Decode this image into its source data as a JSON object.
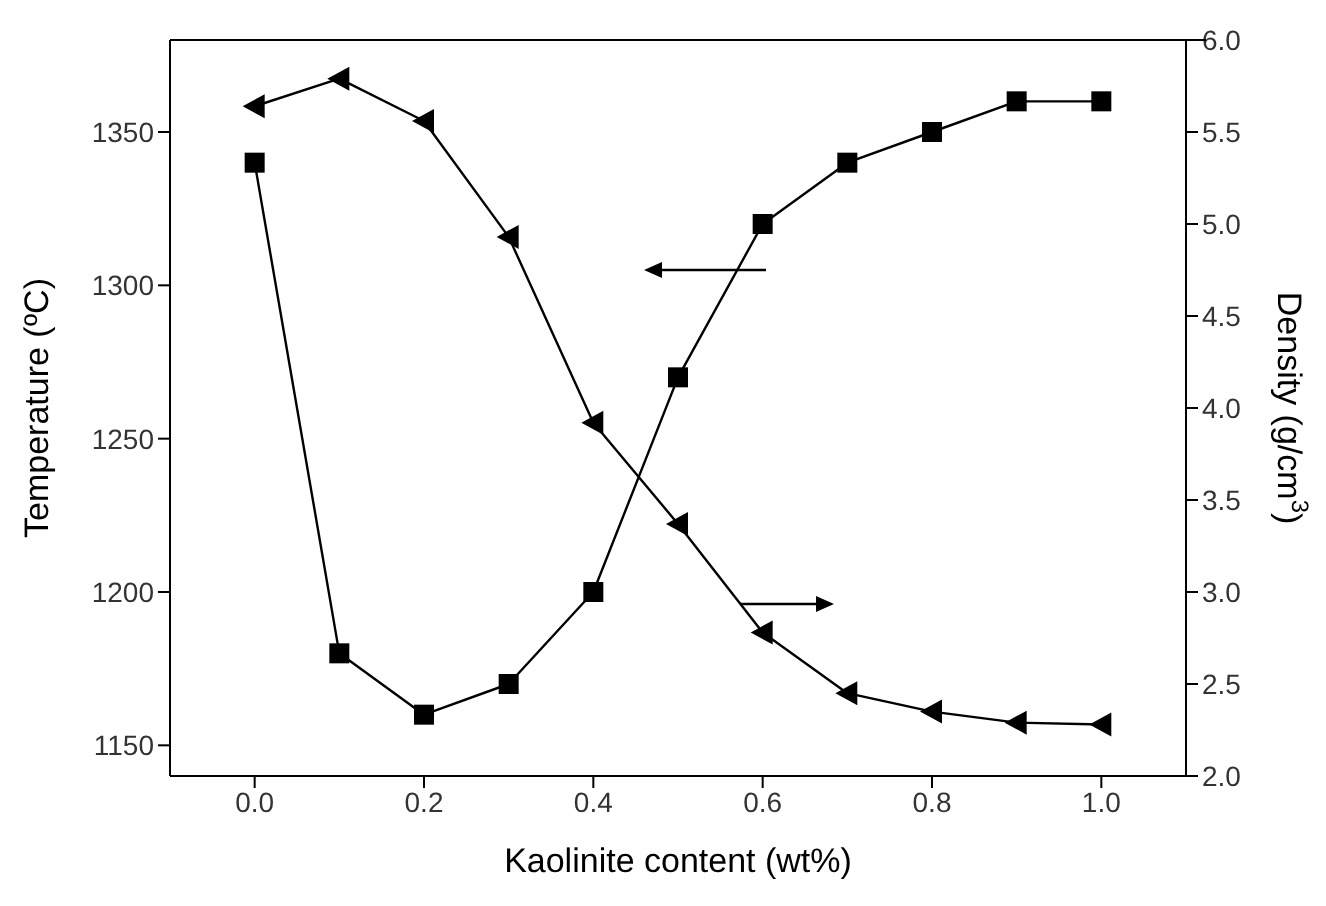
{
  "chart_data": {
    "type": "line",
    "xlabel": "Kaolinite content (wt%)",
    "ylabel": "Temperature (ºC)",
    "y2label": "Density (g/cm$^{3}$)",
    "x": [
      0,
      0.1,
      0.2,
      0.3,
      0.4,
      0.5,
      0.6,
      0.7,
      0.8,
      0.9,
      1.0
    ],
    "xlim": [
      -0.1,
      1.1
    ],
    "xticks": [
      {
        "value": 0,
        "label": "0.0"
      },
      0.2,
      0.4,
      0.6,
      0.8,
      {
        "value": 1,
        "label": "1.0"
      }
    ],
    "ylim": [
      1140,
      1380
    ],
    "yticks": [
      1150,
      1200,
      1250,
      1300,
      1350
    ],
    "y2lim": [
      2,
      6
    ],
    "y2ticks": [
      {
        "value": 2,
        "label": "2.0"
      },
      2.5,
      {
        "value": 3,
        "label": "3.0"
      },
      3.5,
      {
        "value": 4,
        "label": "4.0"
      },
      4.5,
      {
        "value": 5,
        "label": "5.0"
      },
      5.5,
      {
        "value": 6,
        "label": "6.0"
      }
    ],
    "series": [
      {
        "color": "#000000",
        "marker": "square",
        "values": [
          1340,
          1180,
          1160,
          1170,
          1200,
          1270,
          1320,
          1340,
          1350,
          1360,
          1360
        ]
      },
      {
        "color": "#000000",
        "marker": "triangle",
        "axis": "y2",
        "values": [
          5.64,
          5.79,
          5.56,
          4.93,
          3.92,
          3.37,
          2.78,
          2.45,
          2.35,
          2.29,
          2.28
        ]
      }
    ],
    "grid": false,
    "legend": false,
    "line_style": "solid"
  }
}
